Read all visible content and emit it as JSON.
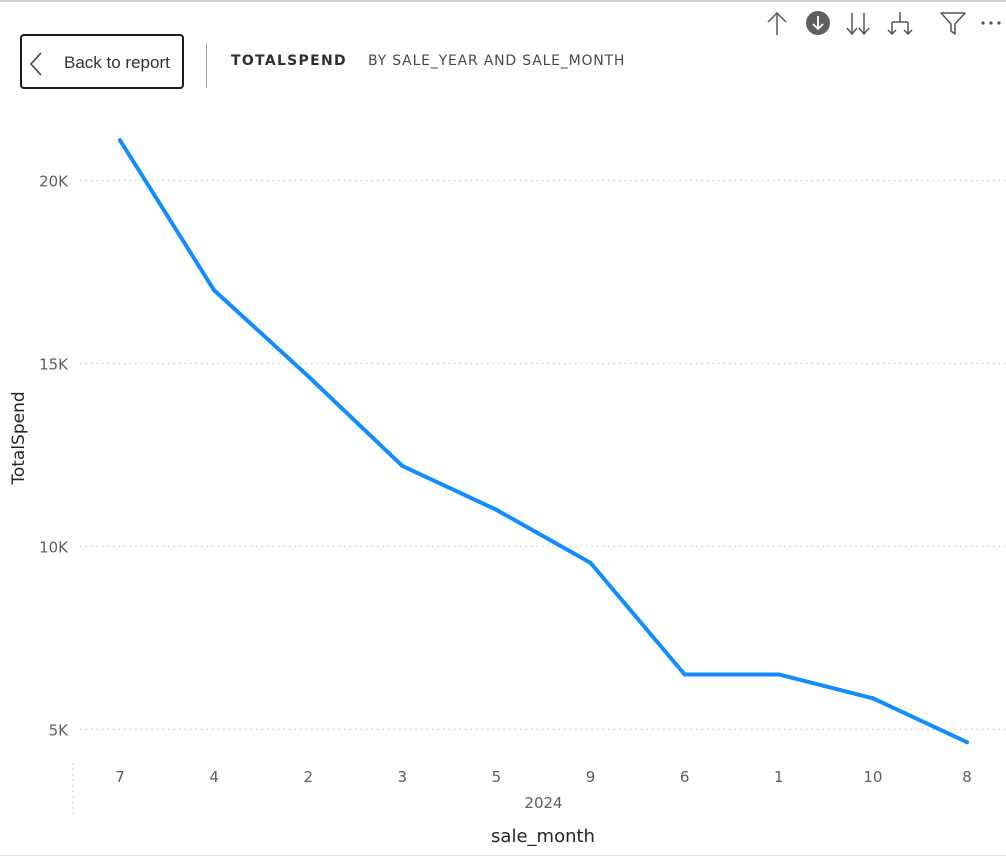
{
  "toolbar": {
    "back_label": "Back to report",
    "icons": [
      "drill-up-icon",
      "drill-down-mode-icon",
      "next-level-icon",
      "expand-hierarchy-icon",
      "filter-icon",
      "more-options-icon"
    ]
  },
  "visual_header": {
    "title": "TOTALSPEND",
    "subtitle": "BY SALE_YEAR AND SALE_MONTH"
  },
  "colors": {
    "line": "#118DFF",
    "grid": "#c8c8c8",
    "text": "#605e5c"
  },
  "chart_data": {
    "type": "line",
    "categories": [
      "7",
      "4",
      "2",
      "3",
      "5",
      "9",
      "6",
      "1",
      "10",
      "8"
    ],
    "group_label": "2024",
    "series": [
      {
        "values": [
          21100,
          17000,
          14650,
          12200,
          11000,
          9550,
          6500,
          6500,
          5850,
          4650
        ]
      }
    ],
    "xlabel": "sale_month",
    "ylabel": "TotalSpend",
    "yticks": [
      {
        "value": 5000,
        "label": "5K"
      },
      {
        "value": 10000,
        "label": "10K"
      },
      {
        "value": 15000,
        "label": "15K"
      },
      {
        "value": 20000,
        "label": "20K"
      }
    ],
    "ylim": [
      4300,
      22200
    ],
    "grid": true
  }
}
